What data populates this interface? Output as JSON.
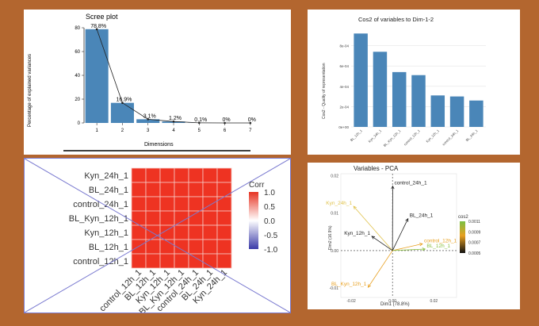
{
  "chart_data": [
    {
      "type": "bar",
      "title": "Scree plot",
      "xlabel": "Dimensions",
      "ylabel": "Percentage of explained variances",
      "categories": [
        "1",
        "2",
        "3",
        "4",
        "5",
        "6",
        "7"
      ],
      "values": [
        78.8,
        16.9,
        3.1,
        1.2,
        0.1,
        0,
        0
      ],
      "data_labels": [
        "78.8%",
        "16.9%",
        "3.1%",
        "1.2%",
        "0.1%",
        "0%",
        "0%"
      ],
      "yticks": [
        "0",
        "20",
        "40",
        "60",
        "80"
      ],
      "ylim": [
        0,
        80
      ],
      "line_overlay": true,
      "bar_color": "#4a86b8"
    },
    {
      "type": "bar",
      "title": "Cos2 of variables to Dim-1-2",
      "ylabel": "Cos2 - Quality of representation",
      "categories": [
        "BL_12h_1",
        "Kyn_24h_1",
        "BL_Kyn_12h_1",
        "control_12h_1",
        "Kyn_12h_1",
        "control_24h_1",
        "BL_24h_1"
      ],
      "values": [
        0.00092,
        0.00074,
        0.00054,
        0.00051,
        0.00031,
        0.0003,
        0.00026
      ],
      "yticks": [
        "0e+00",
        "2e-04",
        "4e-04",
        "6e-04",
        "8e-04"
      ],
      "ylim": [
        0,
        0.001
      ],
      "bar_color": "#4a86b8"
    },
    {
      "type": "heatmap",
      "rows": [
        "Kyn_24h_1",
        "BL_24h_1",
        "control_24h_1",
        "BL_Kyn_12h_1",
        "Kyn_12h_1",
        "BL_12h_1",
        "control_12h_1"
      ],
      "columns": [
        "control_12h_1",
        "BL_12h_1",
        "Kyn_12h_1",
        "BL_Kyn_12h_1",
        "control_24h_1",
        "BL_24h_1",
        "Kyn_24h_1"
      ],
      "legend_title": "Corr",
      "legend_ticks": [
        "1.0",
        "0.5",
        "0.0",
        "-0.5",
        "-1.0"
      ],
      "cell_color": "#ee3322",
      "crossed_out": true
    },
    {
      "type": "scatter",
      "title": "Variables - PCA",
      "xlabel": "Dim1 (78.8%)",
      "ylabel": "Dim2 (16.9%)",
      "xticks": [
        "-0.02",
        "0.00",
        "0.02"
      ],
      "yticks": [
        "0.02",
        "0.01",
        "0.00",
        "-0.01"
      ],
      "legend_title": "cos2",
      "legend_ticks": [
        "0.0011",
        "0.0009",
        "0.0007",
        "0.0005"
      ],
      "arrows": [
        {
          "name": "control_24h_1",
          "x": 0.0001,
          "y": 0.0172,
          "color": "#222222"
        },
        {
          "name": "Kyn_24h_1",
          "x": -0.0188,
          "y": 0.0118,
          "color": "#e0c24a"
        },
        {
          "name": "BL_24h_1",
          "x": 0.0075,
          "y": 0.0085,
          "color": "#222222"
        },
        {
          "name": "Kyn_12h_1",
          "x": -0.01,
          "y": 0.0038,
          "color": "#222222"
        },
        {
          "name": "control_12h_1",
          "x": 0.0145,
          "y": 0.0018,
          "color": "#e8a020"
        },
        {
          "name": "BL_12h_1",
          "x": 0.0158,
          "y": 0.0004,
          "color": "#8ac040"
        },
        {
          "name": "BL_Kyn_12h_1",
          "x": -0.0118,
          "y": -0.0098,
          "color": "#e8a020"
        }
      ]
    }
  ]
}
